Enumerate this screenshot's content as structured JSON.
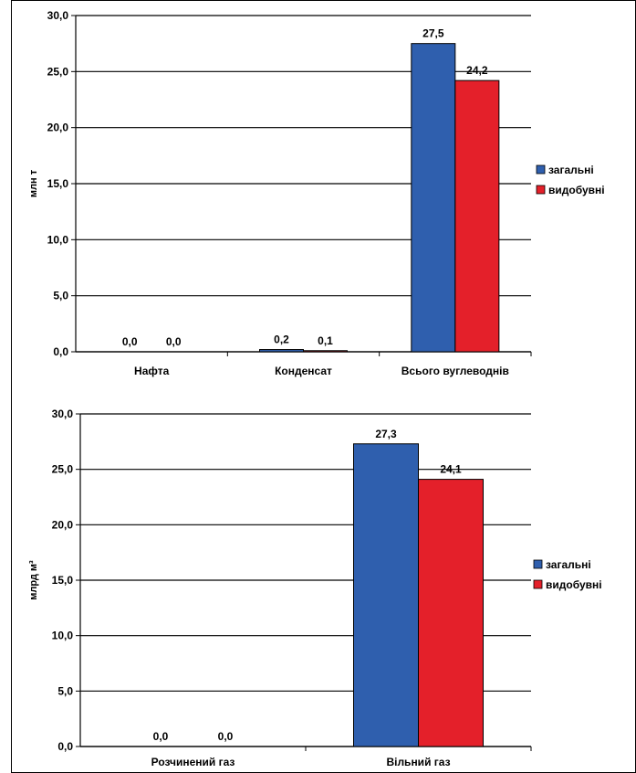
{
  "charts": [
    {
      "type": "bar",
      "categories": [
        "Нафта",
        "Конденсат",
        "Всього вуглеводнів"
      ],
      "series": [
        {
          "name": "загальні",
          "values": [
            0.0,
            0.2,
            27.5
          ],
          "labels": [
            "0,0",
            "0,2",
            "27,5"
          ],
          "color": "#2F5FAE"
        },
        {
          "name": "видобувні",
          "values": [
            0.0,
            0.1,
            24.2
          ],
          "labels": [
            "0,0",
            "0,1",
            "24,2"
          ],
          "color": "#E4202A"
        }
      ],
      "ylabel": "млн т",
      "ylim": [
        0,
        30
      ],
      "yticks": [
        0,
        5,
        10,
        15,
        20,
        25,
        30
      ],
      "ytick_labels": [
        "0,0",
        "5,0",
        "10,0",
        "15,0",
        "20,0",
        "25,0",
        "30,0"
      ],
      "grid": true,
      "legend": "right"
    },
    {
      "type": "bar",
      "categories": [
        "Розчинений газ",
        "Вільний газ"
      ],
      "series": [
        {
          "name": "загальні",
          "values": [
            0.0,
            27.3
          ],
          "labels": [
            "0,0",
            "27,3"
          ],
          "color": "#2F5FAE"
        },
        {
          "name": "видобувні",
          "values": [
            0.0,
            24.1
          ],
          "labels": [
            "0,0",
            "24,1"
          ],
          "color": "#E4202A"
        }
      ],
      "ylabel": "млрд м³",
      "ylim": [
        0,
        30
      ],
      "yticks": [
        0,
        5,
        10,
        15,
        20,
        25,
        30
      ],
      "ytick_labels": [
        "0,0",
        "5,0",
        "10,0",
        "15,0",
        "20,0",
        "25,0",
        "30,0"
      ],
      "grid": true,
      "legend": "right"
    }
  ]
}
